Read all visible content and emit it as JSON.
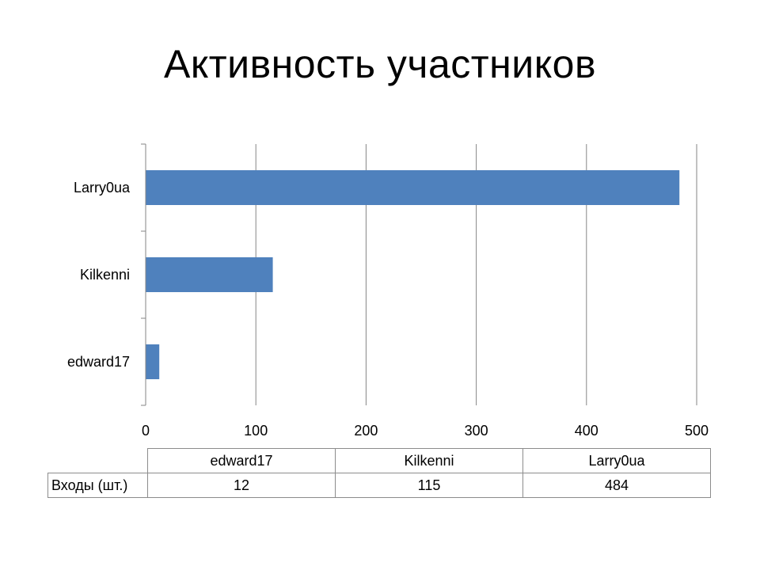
{
  "title": "Активность участников",
  "chart_data": {
    "type": "bar",
    "orientation": "horizontal",
    "title": "Активность участников",
    "categories": [
      "edward17",
      "Kilkenni",
      "Larry0ua"
    ],
    "series": [
      {
        "name": "Входы (шт.)",
        "values": [
          12,
          115,
          484
        ]
      }
    ],
    "xlim": [
      0,
      500
    ],
    "xticks": [
      0,
      100,
      200,
      300,
      400,
      500
    ],
    "grid": true,
    "bar_color": "#4f81bd"
  },
  "table": {
    "columns": [
      "edward17",
      "Kilkenni",
      "Larry0ua"
    ],
    "row_label": "Входы (шт.)",
    "values": [
      "12",
      "115",
      "484"
    ]
  }
}
